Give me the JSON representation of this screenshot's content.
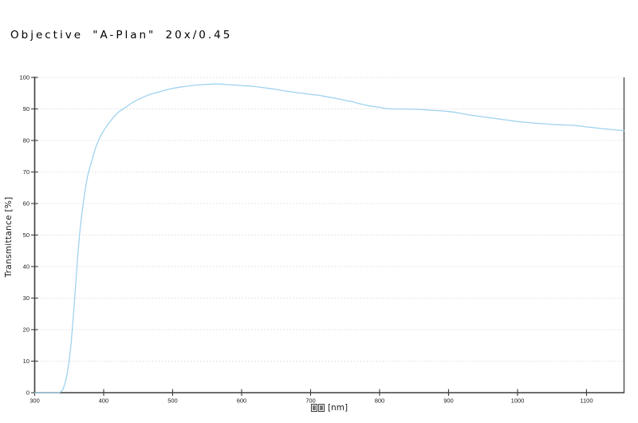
{
  "title": "Objective \"A-Plan\" 20x/0.45",
  "colors": {
    "background": "#ffffff",
    "curve": "#9fd3ef",
    "axis": "#3d3d3d",
    "border_right": "#5f5f5f",
    "grid": "#c9c9c9",
    "tick_text": "#1a1a1a",
    "title_text": "#000000"
  },
  "chart_data": {
    "type": "line",
    "title": "Objective \"A-Plan\" 20x/0.45",
    "ylabel": "Transmittance [%]",
    "xlabel_missing_glyphs": "□□",
    "xlabel_unit": "[nm]",
    "xlim": [
      300,
      1155
    ],
    "ylim": [
      0,
      100
    ],
    "x_ticks": [
      300,
      400,
      500,
      600,
      700,
      800,
      900,
      1000,
      1100
    ],
    "y_ticks": [
      0,
      10,
      20,
      30,
      40,
      50,
      60,
      70,
      80,
      90,
      100
    ],
    "grid": "horizontal-dotted",
    "legend": "none",
    "series": [
      {
        "name": "transmittance",
        "points": [
          [
            300,
            0
          ],
          [
            310,
            0
          ],
          [
            320,
            0
          ],
          [
            330,
            0
          ],
          [
            335,
            0
          ],
          [
            338,
            0.3
          ],
          [
            341,
            1
          ],
          [
            344,
            3
          ],
          [
            347,
            6
          ],
          [
            350,
            10
          ],
          [
            353,
            16
          ],
          [
            356,
            24
          ],
          [
            359,
            33
          ],
          [
            362,
            42
          ],
          [
            365,
            50
          ],
          [
            368,
            56
          ],
          [
            371,
            61
          ],
          [
            374,
            65.5
          ],
          [
            377,
            69
          ],
          [
            380,
            71.5
          ],
          [
            384,
            74.5
          ],
          [
            388,
            77.5
          ],
          [
            392,
            79.8
          ],
          [
            397,
            82
          ],
          [
            402,
            83.8
          ],
          [
            408,
            85.6
          ],
          [
            415,
            87.6
          ],
          [
            423,
            89.3
          ],
          [
            430,
            90.2
          ],
          [
            440,
            91.8
          ],
          [
            450,
            93
          ],
          [
            460,
            94
          ],
          [
            470,
            94.8
          ],
          [
            480,
            95.4
          ],
          [
            490,
            96
          ],
          [
            500,
            96.5
          ],
          [
            510,
            96.9
          ],
          [
            520,
            97.2
          ],
          [
            530,
            97.5
          ],
          [
            540,
            97.7
          ],
          [
            550,
            97.8
          ],
          [
            560,
            97.9
          ],
          [
            570,
            97.9
          ],
          [
            580,
            97.7
          ],
          [
            590,
            97.6
          ],
          [
            600,
            97.4
          ],
          [
            610,
            97.3
          ],
          [
            620,
            97.1
          ],
          [
            630,
            96.8
          ],
          [
            640,
            96.5
          ],
          [
            650,
            96.2
          ],
          [
            660,
            95.8
          ],
          [
            670,
            95.5
          ],
          [
            680,
            95.2
          ],
          [
            690,
            94.9
          ],
          [
            700,
            94.6
          ],
          [
            710,
            94.4
          ],
          [
            720,
            94
          ],
          [
            730,
            93.6
          ],
          [
            740,
            93.2
          ],
          [
            750,
            92.7
          ],
          [
            760,
            92.3
          ],
          [
            770,
            91.7
          ],
          [
            780,
            91.2
          ],
          [
            790,
            90.8
          ],
          [
            800,
            90.5
          ],
          [
            810,
            90.1
          ],
          [
            820,
            90
          ],
          [
            835,
            90
          ],
          [
            850,
            89.9
          ],
          [
            862,
            89.8
          ],
          [
            875,
            89.6
          ],
          [
            890,
            89.4
          ],
          [
            900,
            89.2
          ],
          [
            910,
            88.9
          ],
          [
            920,
            88.5
          ],
          [
            930,
            88.1
          ],
          [
            940,
            87.8
          ],
          [
            950,
            87.5
          ],
          [
            960,
            87.2
          ],
          [
            970,
            86.9
          ],
          [
            980,
            86.6
          ],
          [
            990,
            86.3
          ],
          [
            1000,
            86
          ],
          [
            1010,
            85.8
          ],
          [
            1020,
            85.6
          ],
          [
            1030,
            85.4
          ],
          [
            1040,
            85.3
          ],
          [
            1050,
            85.1
          ],
          [
            1060,
            85
          ],
          [
            1070,
            84.9
          ],
          [
            1080,
            84.8
          ],
          [
            1090,
            84.6
          ],
          [
            1100,
            84.3
          ],
          [
            1110,
            84.1
          ],
          [
            1120,
            83.8
          ],
          [
            1130,
            83.6
          ],
          [
            1140,
            83.4
          ],
          [
            1150,
            83.2
          ],
          [
            1155,
            83.1
          ]
        ]
      }
    ]
  }
}
